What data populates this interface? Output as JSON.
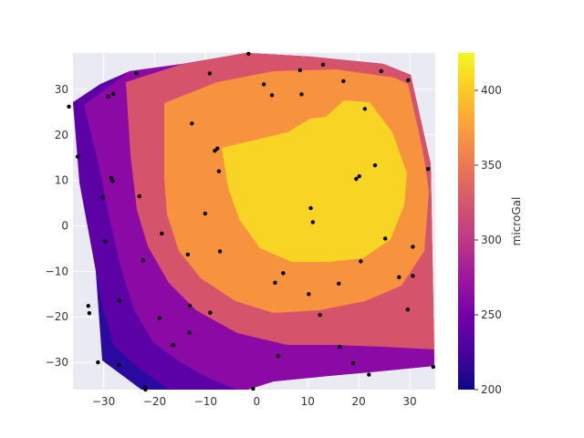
{
  "chart_data": {
    "type": "contour",
    "title": "",
    "xlabel": "",
    "ylabel": "",
    "xlim": [
      -36,
      35
    ],
    "ylim": [
      -36,
      38
    ],
    "grid": true,
    "xticks": [
      -30,
      -20,
      -10,
      0,
      10,
      20,
      30
    ],
    "yticks": [
      -30,
      -20,
      -10,
      0,
      10,
      20,
      30
    ],
    "colorbar": {
      "label": "microGal",
      "range": [
        200,
        425
      ],
      "ticks": [
        200,
        250,
        300,
        350,
        400
      ],
      "colormap": "plasma"
    },
    "levels": [
      {
        "name": "band-200",
        "value": 200,
        "color": "#2a0aa0"
      },
      {
        "name": "band-225",
        "value": 225,
        "color": "#5c01a6"
      },
      {
        "name": "band-250",
        "value": 250,
        "color": "#8b0aa5"
      },
      {
        "name": "band-300",
        "value": 300,
        "color": "#d6546b"
      },
      {
        "name": "band-350",
        "value": 350,
        "color": "#f7923f"
      },
      {
        "name": "band-400",
        "value": 400,
        "color": "#f8d524"
      }
    ],
    "points": [
      [
        -36.8,
        26.2
      ],
      [
        -35.1,
        15.2
      ],
      [
        -33.0,
        -17.6
      ],
      [
        -32.8,
        -19.2
      ],
      [
        -31.1,
        -30.0
      ],
      [
        -30.2,
        6.3
      ],
      [
        -29.7,
        -3.4
      ],
      [
        -29.1,
        28.4
      ],
      [
        -28.5,
        10.5
      ],
      [
        -28.2,
        9.8
      ],
      [
        -28.1,
        29.0
      ],
      [
        -26.9,
        -16.4
      ],
      [
        -27.0,
        -30.6
      ],
      [
        -23.6,
        33.5
      ],
      [
        -22.2,
        -7.6
      ],
      [
        -21.9,
        -35.5
      ],
      [
        -23.0,
        6.5
      ],
      [
        -21.8,
        -36.0
      ],
      [
        -19.0,
        -20.3
      ],
      [
        -18.6,
        -1.7
      ],
      [
        -16.4,
        -26.2
      ],
      [
        -12.7,
        22.5
      ],
      [
        -13.5,
        -6.3
      ],
      [
        -13.1,
        -17.6
      ],
      [
        -13.2,
        -23.5
      ],
      [
        -10.1,
        2.7
      ],
      [
        -9.2,
        33.5
      ],
      [
        -9.1,
        -19.1
      ],
      [
        -8.2,
        16.5
      ],
      [
        -7.7,
        17.0
      ],
      [
        -7.4,
        12.0
      ],
      [
        -7.2,
        -5.6
      ],
      [
        -1.6,
        37.8
      ],
      [
        -0.7,
        -35.8
      ],
      [
        1.4,
        31.1
      ],
      [
        3.0,
        28.7
      ],
      [
        3.6,
        -12.5
      ],
      [
        4.2,
        -28.6
      ],
      [
        5.2,
        -10.4
      ],
      [
        8.5,
        34.2
      ],
      [
        8.8,
        28.9
      ],
      [
        10.2,
        -15.0
      ],
      [
        10.6,
        3.9
      ],
      [
        11.0,
        0.8
      ],
      [
        12.4,
        -19.6
      ],
      [
        13.0,
        35.4
      ],
      [
        16.3,
        -26.6
      ],
      [
        16.1,
        -12.7
      ],
      [
        17.0,
        31.8
      ],
      [
        18.9,
        -30.2
      ],
      [
        19.5,
        10.3
      ],
      [
        20.1,
        10.9
      ],
      [
        20.4,
        -7.8
      ],
      [
        21.2,
        25.7
      ],
      [
        22.0,
        -32.7
      ],
      [
        23.2,
        13.3
      ],
      [
        24.4,
        34.0
      ],
      [
        25.2,
        -2.8
      ],
      [
        27.9,
        -11.3
      ],
      [
        29.6,
        -18.4
      ],
      [
        29.7,
        32.0
      ],
      [
        30.6,
        -4.6
      ],
      [
        30.6,
        -11.0
      ],
      [
        33.6,
        12.5
      ],
      [
        34.6,
        -31.0
      ]
    ]
  }
}
